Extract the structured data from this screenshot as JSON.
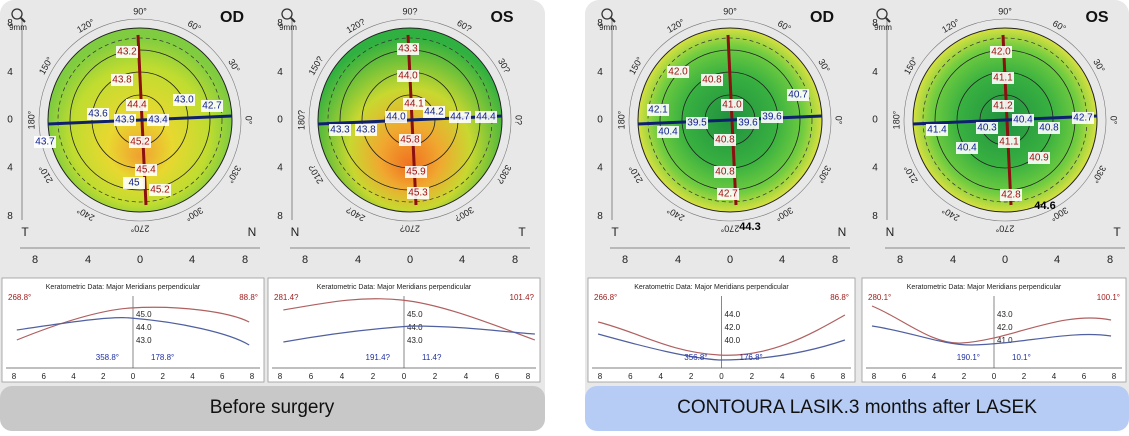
{
  "panels": [
    {
      "caption": "Before surgery",
      "maps": [
        {
          "eye": "OD",
          "scale": "9mm",
          "side_left": "T",
          "side_right": "N",
          "angles": [
            "0°",
            "30°",
            "60°",
            "90°",
            "120°",
            "150°",
            "180°",
            "210°",
            "240°",
            "270°",
            "300°",
            "330°"
          ],
          "x_ticks": [
            "8",
            "4",
            "0",
            "4",
            "8"
          ],
          "y_ticks": [
            "8",
            "4",
            "0",
            "4",
            "8"
          ],
          "readings": [
            "43.2",
            "43.8",
            "44.4",
            "43.9",
            "43.4",
            "43.0",
            "42.7",
            "43.6",
            "43.7",
            "45.2",
            "45.4",
            "45.2",
            "45"
          ]
        },
        {
          "eye": "OS",
          "scale": "9mm",
          "side_left": "N",
          "side_right": "T",
          "angles": [
            "0?",
            "30?",
            "60?",
            "90?",
            "120?",
            "150?",
            "180?",
            "210?",
            "240?",
            "270?",
            "300?",
            "330?"
          ],
          "x_ticks": [
            "8",
            "4",
            "0",
            "4",
            "8"
          ],
          "y_ticks": [
            "8",
            "4",
            "0",
            "4",
            "8"
          ],
          "readings": [
            "43.3",
            "44.0",
            "44.2",
            "44.1",
            "44.0",
            "44.7",
            "44.4",
            "43.3",
            "43.8",
            "45.8",
            "45.9",
            "45.3"
          ]
        }
      ],
      "graphs": [
        {
          "title": "Keratometric Data: Major Meridians perpendicular",
          "labels": [
            "268.8°",
            "88.8°",
            "358.8°",
            "178.8°"
          ],
          "y_ticks": [
            "45.0",
            "44.0",
            "43.0"
          ],
          "x_ticks": [
            "8",
            "6",
            "4",
            "2",
            "0",
            "2",
            "4",
            "6",
            "8"
          ]
        },
        {
          "title": "Keratometric Data: Major Meridians perpendicular",
          "labels": [
            "281.4?",
            "101.4?",
            "191.4?",
            "11.4?"
          ],
          "y_ticks": [
            "45.0",
            "44.0",
            "43.0"
          ],
          "x_ticks": [
            "8",
            "6",
            "4",
            "2",
            "0",
            "2",
            "4",
            "6",
            "8"
          ]
        }
      ]
    },
    {
      "caption": "CONTOURA LASIK.3 months after LASEK",
      "maps": [
        {
          "eye": "OD",
          "scale": "9mm",
          "side_left": "T",
          "side_right": "N",
          "angles": [
            "0°",
            "30°",
            "60°",
            "90°",
            "120°",
            "150°",
            "180°",
            "210°",
            "240°",
            "270°",
            "300°",
            "330°"
          ],
          "x_ticks": [
            "8",
            "4",
            "0",
            "4",
            "8"
          ],
          "y_ticks": [
            "8",
            "4",
            "0",
            "4",
            "8"
          ],
          "readings": [
            "42.0",
            "40.8",
            "41.0",
            "40.7",
            "42.1",
            "40.4",
            "39.5",
            "39.6",
            "39.6",
            "40.8",
            "40.8",
            "42.7",
            "44.3"
          ]
        },
        {
          "eye": "OS",
          "scale": "9mm",
          "side_left": "N",
          "side_right": "T",
          "angles": [
            "0°",
            "30°",
            "60°",
            "90°",
            "120°",
            "150°",
            "180°",
            "210°",
            "240°",
            "270°",
            "300°",
            "330°"
          ],
          "x_ticks": [
            "8",
            "4",
            "0",
            "4",
            "8"
          ],
          "y_ticks": [
            "8",
            "4",
            "0",
            "4",
            "8"
          ],
          "readings": [
            "42.0",
            "41.1",
            "41.2",
            "42.7",
            "41.4",
            "40.3",
            "40.4",
            "40.8",
            "40.4",
            "41.1",
            "40.9",
            "42.8",
            "44.6"
          ]
        }
      ],
      "graphs": [
        {
          "title": "Keratometric Data: Major Meridians perpendicular",
          "labels": [
            "266.8°",
            "86.8°",
            "356.8°",
            "176.8°"
          ],
          "y_ticks": [
            "44.0",
            "42.0",
            "40.0"
          ],
          "x_ticks": [
            "8",
            "6",
            "4",
            "2",
            "0",
            "2",
            "4",
            "6",
            "8"
          ]
        },
        {
          "title": "Keratometric Data: Major Meridians perpendicular",
          "labels": [
            "280.1°",
            "100.1°",
            "190.1°",
            "10.1°"
          ],
          "y_ticks": [
            "43.0",
            "42.0",
            "41.0"
          ],
          "x_ticks": [
            "8",
            "6",
            "4",
            "2",
            "0",
            "2",
            "4",
            "6",
            "8"
          ]
        }
      ]
    }
  ]
}
